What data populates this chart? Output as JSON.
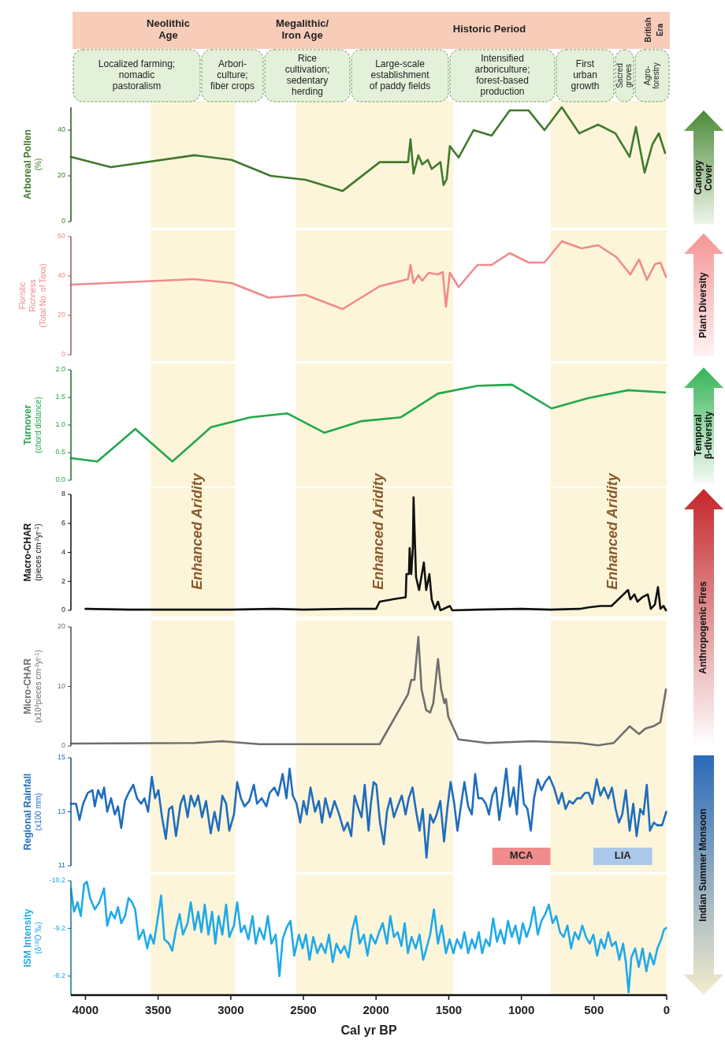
{
  "chart_data": [
    {
      "type": "line",
      "ylabel": "Arboreal Pollen\n(%)",
      "xlim": [
        4100,
        0
      ],
      "ylim": [
        0,
        50
      ],
      "yticks": [
        0,
        20,
        40
      ],
      "tick_labels": "y",
      "x": [
        4100,
        3825,
        3250,
        2995,
        2725,
        2485,
        2230,
        1975,
        1780,
        1763,
        1742,
        1709,
        1682,
        1644,
        1617,
        1557,
        1536,
        1514,
        1492,
        1432,
        1329,
        1205,
        1080,
        950,
        841,
        722,
        602,
        472,
        353,
        255,
        212,
        152,
        98,
        54,
        11
      ],
      "series": [
        {
          "color": "#3f7a2c",
          "values": [
            28.3,
            23.8,
            29,
            27,
            20,
            18.3,
            13.4,
            26,
            26,
            36,
            21,
            29,
            25,
            27,
            23,
            26,
            16,
            18.6,
            33,
            28,
            40,
            37.6,
            48.6,
            48.6,
            40,
            50,
            38.6,
            42.4,
            38.6,
            28.3,
            41.4,
            21.4,
            33.8,
            38.6,
            30
          ]
        }
      ],
      "bands": [
        {
          "axis": "x",
          "from": 3550,
          "to": 2970,
          "color": "#fdf5da"
        },
        {
          "axis": "x",
          "from": 2550,
          "to": 1470,
          "color": "#fdf5da"
        },
        {
          "axis": "x",
          "from": 800,
          "to": 0,
          "color": "#fdf5da"
        }
      ],
      "annotations": [
        "Neolithic\nAge",
        "Megalithic/\nIron Age",
        "Historic Period",
        "British\nEra",
        "Localized farming;\nnomadic\npastoralism",
        "Arbori-\nculture;\nfiber crops",
        "Rice\ncultivation;\nsedentary\nherding",
        "Large-scale\nestablishment\nof paddy fields",
        "Intensified\narboriculture;\nforest-based\nproduction",
        "First\nurban\ngrowth",
        "Sacred\ngroves",
        "Agro-\nforestry",
        "Canopy\nCover"
      ]
    },
    {
      "type": "line",
      "ylabel": "Floristic\nRichness\n(Total No. of Taxa)",
      "xlim": [
        4100,
        0
      ],
      "ylim": [
        0,
        60
      ],
      "yticks": [
        0,
        20,
        40,
        60
      ],
      "tick_labels": "y",
      "x": [
        4100,
        3250,
        2995,
        2740,
        2485,
        2230,
        1975,
        1780,
        1763,
        1742,
        1709,
        1682,
        1638,
        1574,
        1541,
        1519,
        1492,
        1432,
        1302,
        1205,
        1080,
        950,
        841,
        722,
        586,
        472,
        347,
        250,
        190,
        136,
        81,
        43,
        5
      ],
      "series": [
        {
          "color": "#f08a8e",
          "values": [
            35.6,
            38.4,
            36.4,
            29,
            30.4,
            23.2,
            34.8,
            38.4,
            45.6,
            36.4,
            40.4,
            37.6,
            41.6,
            40.8,
            42,
            24.4,
            41.6,
            34.4,
            45.6,
            45.6,
            51.6,
            46.8,
            46.8,
            57.6,
            54,
            55.6,
            49.6,
            40.8,
            48.4,
            38,
            46,
            46.8,
            39.6
          ]
        }
      ],
      "bands": [
        {
          "axis": "x",
          "from": 3550,
          "to": 2970,
          "color": "#fdf5da"
        },
        {
          "axis": "x",
          "from": 2550,
          "to": 1470,
          "color": "#fdf5da"
        },
        {
          "axis": "x",
          "from": 800,
          "to": 0,
          "color": "#fdf5da"
        }
      ],
      "annotations": [
        "Plant Diversity"
      ]
    },
    {
      "type": "line",
      "ylabel": "Turnover\n(chord distance)",
      "xlim": [
        4100,
        0
      ],
      "ylim": [
        0,
        2
      ],
      "yticks": [
        {
          "value": 0,
          "label": "0.0"
        },
        0.5,
        {
          "value": 1,
          "label": "1.0"
        },
        1.5,
        {
          "value": 2,
          "label": "2.0"
        }
      ],
      "tick_labels": "y",
      "x": [
        4100,
        3918,
        3657,
        3402,
        3136,
        2865,
        2610,
        2355,
        2100,
        1829,
        1574,
        1302,
        1064,
        792,
        537,
        266,
        11
      ],
      "series": [
        {
          "color": "#22a84a",
          "values": [
            0.4,
            0.34,
            0.93,
            0.34,
            0.96,
            1.14,
            1.21,
            0.86,
            1.07,
            1.14,
            1.57,
            1.71,
            1.73,
            1.3,
            1.49,
            1.63,
            1.59
          ]
        }
      ],
      "bands": [
        {
          "axis": "x",
          "from": 3550,
          "to": 2970,
          "color": "#fdf5da"
        },
        {
          "axis": "x",
          "from": 2550,
          "to": 1470,
          "color": "#fdf5da"
        },
        {
          "axis": "x",
          "from": 800,
          "to": 0,
          "color": "#fdf5da"
        }
      ],
      "annotations": [
        "Temporal\nβ-diversity"
      ]
    },
    {
      "type": "line",
      "ylabel": "Macro-CHAR\n(pieces cm$^{-2}$yr$^{-1}$)",
      "xlim": [
        4100,
        0
      ],
      "ylim": [
        0,
        8
      ],
      "yticks": [
        0,
        2,
        4,
        6,
        8
      ],
      "tick_labels": "y",
      "x": [
        4000,
        3700,
        3400,
        3000,
        2700,
        2500,
        2200,
        2000,
        1975,
        1861,
        1796,
        1791,
        1774,
        1769,
        1758,
        1747,
        1742,
        1725,
        1704,
        1671,
        1655,
        1633,
        1617,
        1595,
        1574,
        1557,
        1492,
        1476,
        1300,
        1000,
        800,
        600,
        537,
        456,
        380,
        266,
        250,
        222,
        201,
        168,
        130,
        109,
        81,
        60,
        43,
        22,
        5
      ],
      "series": [
        {
          "color": "#111111",
          "values": [
            0.1,
            0.05,
            0.05,
            0.05,
            0.1,
            0.05,
            0.1,
            0.1,
            0.6,
            0.8,
            0.9,
            2.5,
            2.5,
            4.3,
            2.5,
            4.3,
            7.8,
            2.3,
            1.4,
            3.3,
            1.4,
            2.5,
            0.75,
            0.1,
            0.6,
            0,
            0.3,
            0,
            0.05,
            0.1,
            0.05,
            0.1,
            0.2,
            0.3,
            0.3,
            1.4,
            0.75,
            1.1,
            0.6,
            0.9,
            1.1,
            0.1,
            0.4,
            1.6,
            0.1,
            0.3,
            0
          ]
        }
      ],
      "bands": [
        {
          "axis": "x",
          "from": 3550,
          "to": 2970,
          "label": "Enhanced Aridity",
          "color": "#fdf5da"
        },
        {
          "axis": "x",
          "from": 2550,
          "to": 1470,
          "label": "Enhanced Aridity",
          "color": "#fdf5da"
        },
        {
          "axis": "x",
          "from": 800,
          "to": 0,
          "label": "Enhanced Aridity",
          "color": "#fdf5da"
        }
      ],
      "annotations": [
        "Anthropogenic Fires"
      ]
    },
    {
      "type": "line",
      "ylabel": "Micro-CHAR\n(x10$^{3}$pieces cm$^{-2}$yr$^{-1}$)",
      "xlim": [
        4100,
        0
      ],
      "ylim": [
        0,
        20
      ],
      "yticks": [
        0,
        10,
        20
      ],
      "tick_labels": "y",
      "x": [
        4100,
        3250,
        3060,
        2805,
        1975,
        1780,
        1758,
        1736,
        1709,
        1687,
        1655,
        1628,
        1606,
        1574,
        1552,
        1530,
        1519,
        1503,
        1432,
        1237,
        922,
        602,
        472,
        364,
        255,
        190,
        147,
        92,
        43,
        5
      ],
      "series": [
        {
          "color": "#6e6e6e",
          "values": [
            0.4,
            0.5,
            0.8,
            0.3,
            0.3,
            8.7,
            11.1,
            11.1,
            18.3,
            9.5,
            6,
            5.6,
            7.2,
            14.6,
            9.5,
            7.2,
            7.9,
            4.9,
            1.1,
            0.5,
            0.8,
            0.5,
            0.1,
            0.5,
            3.3,
            2,
            2.9,
            3.3,
            4,
            9.5
          ]
        }
      ],
      "bands": [
        {
          "axis": "x",
          "from": 3550,
          "to": 2970,
          "color": "#fdf5da"
        },
        {
          "axis": "x",
          "from": 2550,
          "to": 1470,
          "color": "#fdf5da"
        },
        {
          "axis": "x",
          "from": 800,
          "to": 0,
          "color": "#fdf5da"
        }
      ]
    },
    {
      "type": "line",
      "ylabel": "Regional Rainfall\n(x100 mm)",
      "xlim": [
        4100,
        0
      ],
      "ylim": [
        11,
        15
      ],
      "yticks": [
        11,
        13,
        15
      ],
      "tick_labels": "y",
      "x": [
        4100,
        4065,
        4041,
        4016,
        3984,
        3952,
        3936,
        3913,
        3888,
        3872,
        3850,
        3824,
        3798,
        3776,
        3754,
        3728,
        3703,
        3671,
        3645,
        3617,
        3594,
        3569,
        3543,
        3521,
        3498,
        3473,
        3447,
        3425,
        3403,
        3377,
        3345,
        3323,
        3297,
        3275,
        3249,
        3224,
        3198,
        3170,
        3138,
        3112,
        3084,
        3058,
        3032,
        3010,
        2978,
        2956,
        2930,
        2905,
        2873,
        2841,
        2819,
        2787,
        2755,
        2732,
        2700,
        2675,
        2643,
        2617,
        2595,
        2573,
        2547,
        2522,
        2499,
        2477,
        2451,
        2420,
        2394,
        2372,
        2349,
        2317,
        2286,
        2254,
        2222,
        2196,
        2171,
        2148,
        2126,
        2100,
        2078,
        2052,
        2036,
        2017,
        1998,
        1973,
        1947,
        1925,
        1902,
        1877,
        1851,
        1823,
        1797,
        1775,
        1749,
        1727,
        1701,
        1679,
        1653,
        1628,
        1606,
        1583,
        1558,
        1532,
        1510,
        1487,
        1462,
        1440,
        1414,
        1392,
        1366,
        1341,
        1318,
        1296,
        1270,
        1245,
        1223,
        1200,
        1175,
        1152,
        1127,
        1104,
        1079,
        1053,
        1031,
        1009,
        983,
        958,
        935,
        913,
        887,
        862,
        836,
        808,
        776,
        744,
        721,
        696,
        670,
        645,
        616,
        591,
        562,
        536,
        511,
        482,
        456,
        431,
        402,
        377,
        351,
        329,
        306,
        281,
        255,
        230,
        207,
        182,
        160,
        137,
        115,
        89,
        64,
        32,
        3
      ],
      "series": [
        {
          "color": "#1f6dbd",
          "values": [
            13.3,
            13.3,
            12.7,
            13.3,
            13.7,
            13.8,
            13.2,
            13.8,
            13.5,
            13.9,
            13.0,
            13.5,
            12.9,
            13.2,
            12.4,
            13.4,
            13.7,
            14.0,
            13.5,
            13.3,
            13.5,
            13.0,
            14.3,
            13.5,
            13.8,
            12.8,
            12.0,
            13.1,
            13.2,
            12.1,
            13.3,
            13.6,
            12.8,
            13.6,
            13.2,
            13.6,
            12.8,
            13.4,
            12.2,
            13.0,
            12.3,
            13.6,
            13.3,
            12.3,
            12.9,
            14.1,
            13.5,
            13.2,
            13.4,
            14.0,
            13.3,
            13.5,
            13.2,
            13.7,
            13.9,
            13.6,
            14.4,
            13.5,
            14.6,
            13.6,
            13.3,
            12.6,
            13.4,
            12.9,
            13.9,
            13.0,
            13.4,
            12.6,
            13.5,
            12.8,
            13.4,
            12.9,
            12.3,
            12.6,
            12.1,
            13.6,
            13.2,
            12.8,
            14.0,
            12.3,
            13.3,
            14.1,
            14.0,
            12.6,
            11.8,
            13.0,
            13.5,
            12.8,
            13.2,
            13.6,
            12.9,
            13.5,
            13.9,
            13.1,
            12.3,
            13.1,
            11.3,
            12.9,
            12.6,
            12.9,
            13.4,
            11.9,
            13.1,
            14.1,
            13.3,
            12.3,
            13.3,
            14.1,
            13.2,
            12.9,
            14.4,
            13.5,
            13.5,
            13.3,
            12.9,
            13.6,
            13.9,
            12.7,
            13.6,
            14.6,
            13.2,
            13.9,
            12.9,
            14.7,
            13.3,
            13.1,
            12.3,
            13.5,
            14.2,
            13.8,
            14.1,
            14.3,
            13.9,
            13.3,
            13.7,
            13.1,
            13.4,
            13.3,
            13.5,
            13.5,
            13.7,
            13.7,
            13.3,
            14.2,
            13.6,
            13.9,
            13.5,
            13.9,
            13.1,
            12.6,
            12.9,
            13.8,
            12.3,
            13.3,
            12.1,
            13.1,
            12.9,
            14.0,
            12.3,
            12.6,
            12.5,
            12.5,
            13.0
          ]
        }
      ],
      "bands": [
        {
          "axis": "x",
          "from": 3550,
          "to": 2970,
          "color": "#fdf5da"
        },
        {
          "axis": "x",
          "from": 2550,
          "to": 1470,
          "color": "#fdf5da"
        },
        {
          "axis": "x",
          "from": 800,
          "to": 0,
          "color": "#fdf5da"
        },
        {
          "axis": "x",
          "from": 1200,
          "to": 800,
          "label": "MCA",
          "color": "#f08c8c"
        },
        {
          "axis": "x",
          "from": 505,
          "to": 100,
          "label": "LIA",
          "color": "#a9c8ea"
        }
      ],
      "annotations": [
        "Indian Summer Monsoon"
      ]
    },
    {
      "type": "line",
      "ylabel": "ISM Intensity\n(δ$^{18}$O ‰)",
      "xlabel": "Cal yr BP",
      "xlim": [
        4100,
        0
      ],
      "ylim": [
        -7.8,
        -10.2
      ],
      "yticks": [
        -10.2,
        -9.2,
        -8.2
      ],
      "xticks": [
        4000,
        3500,
        3000,
        2500,
        2000,
        1500,
        1000,
        500,
        0
      ],
      "x": [
        4100,
        4079,
        4054,
        4032,
        4009,
        3990,
        3968,
        3936,
        3904,
        3872,
        3850,
        3824,
        3798,
        3776,
        3754,
        3728,
        3703,
        3680,
        3658,
        3633,
        3601,
        3575,
        3553,
        3530,
        3505,
        3479,
        3457,
        3425,
        3403,
        3377,
        3352,
        3329,
        3297,
        3275,
        3249,
        3224,
        3202,
        3179,
        3154,
        3128,
        3106,
        3084,
        3058,
        3032,
        3010,
        2978,
        2956,
        2930,
        2905,
        2879,
        2850,
        2828,
        2803,
        2771,
        2745,
        2720,
        2691,
        2665,
        2643,
        2617,
        2589,
        2563,
        2531,
        2506,
        2483,
        2458,
        2432,
        2404,
        2378,
        2349,
        2324,
        2298,
        2273,
        2244,
        2218,
        2190,
        2164,
        2139,
        2113,
        2084,
        2059,
        2036,
        2005,
        1979,
        1954,
        1925,
        1902,
        1877,
        1851,
        1826,
        1803,
        1781,
        1756,
        1727,
        1701,
        1676,
        1653,
        1628,
        1602,
        1574,
        1548,
        1519,
        1494,
        1468,
        1443,
        1414,
        1392,
        1366,
        1341,
        1318,
        1293,
        1270,
        1245,
        1219,
        1194,
        1168,
        1143,
        1117,
        1092,
        1066,
        1041,
        1015,
        990,
        964,
        938,
        913,
        887,
        862,
        836,
        811,
        785,
        760,
        734,
        709,
        683,
        658,
        632,
        606,
        581,
        555,
        530,
        504,
        479,
        453,
        428,
        402,
        377,
        351,
        326,
        300,
        281,
        262,
        243,
        217,
        192,
        166,
        140,
        115,
        89,
        64,
        38,
        19,
        3
      ],
      "series": [
        {
          "color": "#1eaaea",
          "values": [
            -10.04,
            -9.55,
            -9.75,
            -9.46,
            -10.13,
            -10.18,
            -9.84,
            -9.6,
            -9.75,
            -10.04,
            -9.26,
            -9.55,
            -9.41,
            -9.65,
            -9.31,
            -9.46,
            -9.84,
            -9.75,
            -9.6,
            -8.97,
            -9.17,
            -8.78,
            -9.07,
            -8.88,
            -9.36,
            -9.89,
            -8.97,
            -8.88,
            -8.73,
            -9.17,
            -9.5,
            -9.07,
            -9.31,
            -9.75,
            -9.17,
            -9.55,
            -9.12,
            -9.7,
            -9.07,
            -9.55,
            -8.88,
            -9.46,
            -9.07,
            -9.7,
            -9.02,
            -9.26,
            -9.75,
            -9.12,
            -9.26,
            -8.97,
            -9.46,
            -8.88,
            -9.21,
            -8.97,
            -9.46,
            -8.88,
            -9.07,
            -8.2,
            -8.97,
            -9.21,
            -9.36,
            -8.63,
            -9.07,
            -8.78,
            -9.07,
            -8.54,
            -9.02,
            -8.68,
            -8.88,
            -8.68,
            -9.07,
            -8.49,
            -8.88,
            -8.68,
            -8.83,
            -8.59,
            -9.17,
            -9.46,
            -8.88,
            -9.07,
            -8.63,
            -9.07,
            -8.88,
            -9.12,
            -9.31,
            -8.88,
            -9.46,
            -9.02,
            -9.12,
            -8.83,
            -9.31,
            -8.68,
            -9.02,
            -8.78,
            -9.07,
            -8.54,
            -8.78,
            -9.07,
            -9.6,
            -8.88,
            -9.26,
            -8.68,
            -8.97,
            -8.68,
            -8.97,
            -8.78,
            -9.12,
            -8.68,
            -8.97,
            -8.78,
            -9.12,
            -8.68,
            -8.97,
            -8.83,
            -9.41,
            -8.92,
            -9.17,
            -8.88,
            -9.36,
            -9.02,
            -9.26,
            -8.88,
            -9.31,
            -9.02,
            -9.26,
            -9.65,
            -9.07,
            -9.36,
            -9.5,
            -9.7,
            -9.31,
            -9.46,
            -9.12,
            -9.02,
            -9.26,
            -8.78,
            -9.12,
            -8.97,
            -9.26,
            -9.02,
            -8.88,
            -9.07,
            -8.63,
            -8.97,
            -8.78,
            -9.12,
            -8.83,
            -8.92,
            -8.54,
            -8.88,
            -8.49,
            -7.86,
            -8.59,
            -8.78,
            -8.39,
            -8.78,
            -8.3,
            -8.68,
            -8.44,
            -8.78,
            -8.97,
            -9.17,
            -9.21
          ]
        }
      ],
      "bands": [
        {
          "axis": "x",
          "from": 3550,
          "to": 2970,
          "color": "#fdf5da"
        },
        {
          "axis": "x",
          "from": 2550,
          "to": 1470,
          "color": "#fdf5da"
        },
        {
          "axis": "x",
          "from": 800,
          "to": 0,
          "color": "#fdf5da"
        }
      ]
    }
  ]
}
